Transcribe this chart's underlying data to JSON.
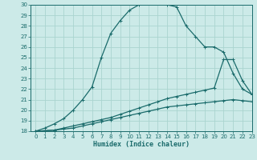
{
  "xlabel": "Humidex (Indice chaleur)",
  "xlim": [
    -0.5,
    23
  ],
  "ylim": [
    18,
    30
  ],
  "xticks": [
    0,
    1,
    2,
    3,
    4,
    5,
    6,
    7,
    8,
    9,
    10,
    11,
    12,
    13,
    14,
    15,
    16,
    17,
    18,
    19,
    20,
    21,
    22,
    23
  ],
  "yticks": [
    18,
    19,
    20,
    21,
    22,
    23,
    24,
    25,
    26,
    27,
    28,
    29,
    30
  ],
  "bg_color": "#cceae8",
  "grid_color": "#aad4d0",
  "line_color": "#1a6b6b",
  "curve1_x": [
    0,
    1,
    2,
    3,
    4,
    5,
    6,
    7,
    8,
    9,
    10,
    11,
    12,
    13,
    14,
    15,
    16,
    17,
    18,
    19,
    20,
    21,
    22,
    23
  ],
  "curve1_y": [
    18.0,
    18.3,
    18.7,
    19.2,
    20.0,
    21.0,
    22.2,
    25.0,
    27.3,
    28.5,
    29.5,
    30.0,
    30.2,
    30.3,
    30.0,
    29.8,
    28.0,
    27.0,
    26.0,
    26.0,
    25.5,
    23.5,
    22.0,
    21.5
  ],
  "curve2_x": [
    0,
    2,
    3,
    4,
    5,
    6,
    7,
    8,
    9,
    10,
    11,
    12,
    13,
    14,
    15,
    16,
    17,
    18,
    19,
    20,
    21,
    22,
    23
  ],
  "curve2_y": [
    18.0,
    18.1,
    18.3,
    18.5,
    18.7,
    18.9,
    19.1,
    19.3,
    19.6,
    19.9,
    20.2,
    20.5,
    20.8,
    21.1,
    21.3,
    21.5,
    21.7,
    21.9,
    22.1,
    24.8,
    24.8,
    22.8,
    21.5
  ],
  "curve3_x": [
    0,
    2,
    3,
    4,
    5,
    6,
    7,
    8,
    9,
    10,
    11,
    12,
    13,
    14,
    15,
    16,
    17,
    18,
    19,
    20,
    21,
    22,
    23
  ],
  "curve3_y": [
    18.0,
    18.1,
    18.2,
    18.3,
    18.5,
    18.7,
    18.9,
    19.1,
    19.3,
    19.5,
    19.7,
    19.9,
    20.1,
    20.3,
    20.4,
    20.5,
    20.6,
    20.7,
    20.8,
    20.9,
    21.0,
    20.9,
    20.8
  ]
}
